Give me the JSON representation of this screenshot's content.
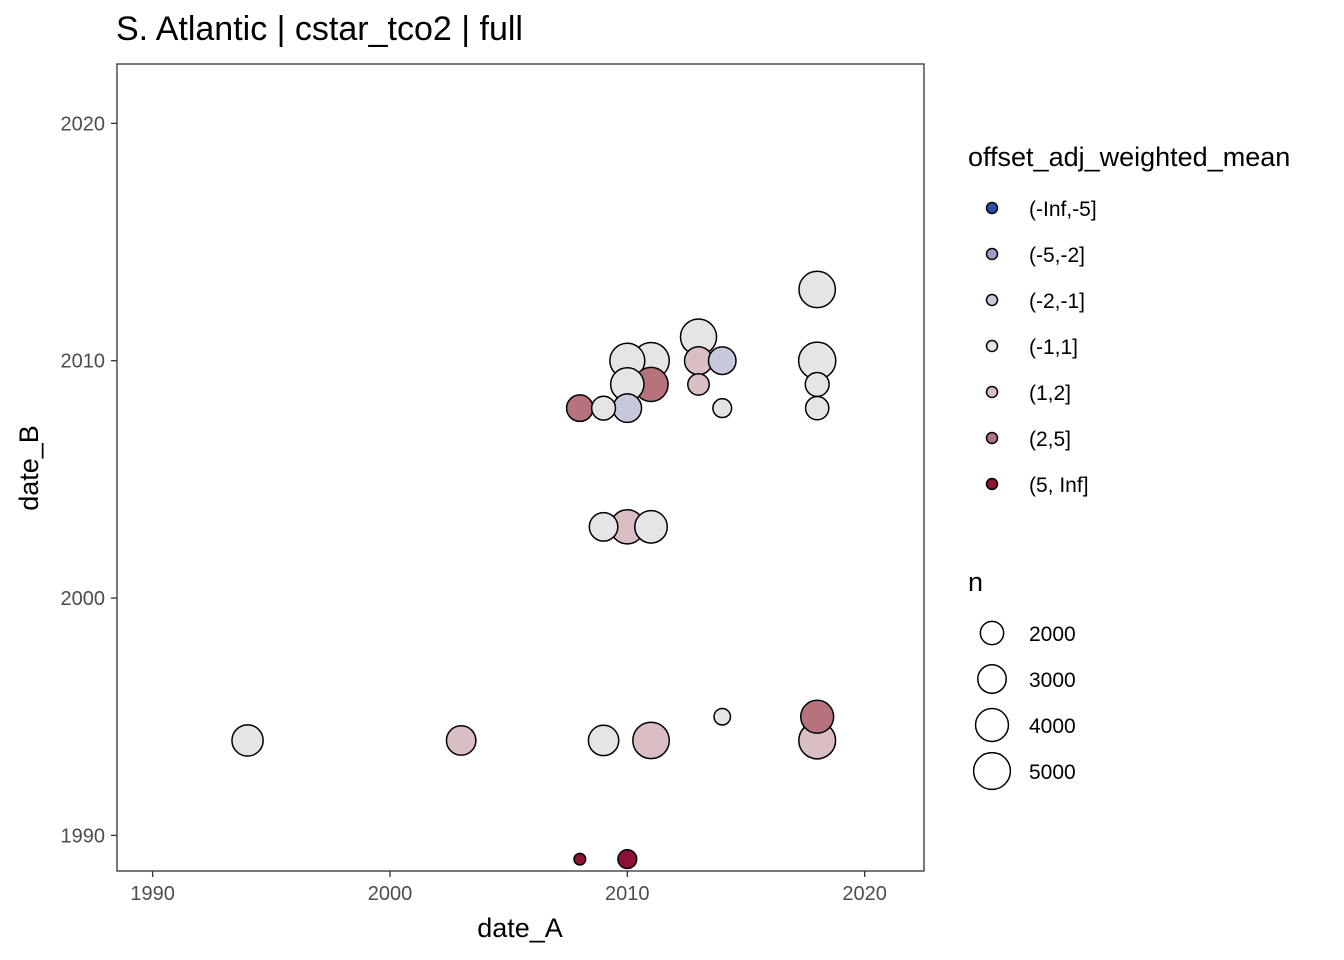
{
  "chart_data": {
    "type": "scatter",
    "title": "S. Atlantic | cstar_tco2 | full",
    "xlabel": "date_A",
    "ylabel": "date_B",
    "xlim": [
      1988.5,
      2022.5
    ],
    "ylim": [
      1988.5,
      2022.5
    ],
    "x_ticks": [
      1990,
      2000,
      2010,
      2020
    ],
    "y_ticks": [
      1990,
      2000,
      2010,
      2020
    ],
    "x_tick_labels": [
      "1990",
      "2000",
      "2010",
      "2020"
    ],
    "y_tick_labels": [
      "1990",
      "2000",
      "2010",
      "2020"
    ],
    "grid": false,
    "legend_placement": "right",
    "color_legend": {
      "title": "offset_adj_weighted_mean",
      "items": [
        {
          "label": "(-Inf,-5]",
          "color": "#2a4fa3"
        },
        {
          "label": "(-5,-2]",
          "color": "#9a9fc7"
        },
        {
          "label": "(-2,-1]",
          "color": "#c6c9dc"
        },
        {
          "label": "(-1,1]",
          "color": "#e5e5e5"
        },
        {
          "label": "(1,2]",
          "color": "#d9bec4"
        },
        {
          "label": "(2,5]",
          "color": "#b6737e"
        },
        {
          "label": "(5, Inf]",
          "color": "#8e1234"
        }
      ]
    },
    "size_legend": {
      "title": "n",
      "items": [
        {
          "label": "2000",
          "value": 2000
        },
        {
          "label": "3000",
          "value": 3000
        },
        {
          "label": "4000",
          "value": 4000
        },
        {
          "label": "5000",
          "value": 5000
        }
      ]
    },
    "points": [
      {
        "x": 1994,
        "y": 1994,
        "n": 3600,
        "bin": "(-1,1]"
      },
      {
        "x": 2003,
        "y": 1994,
        "n": 3200,
        "bin": "(1,2]"
      },
      {
        "x": 2008,
        "y": 1989,
        "n": 500,
        "bin": "(5, Inf]"
      },
      {
        "x": 2008,
        "y": 2008,
        "n": 2600,
        "bin": "(2,5]"
      },
      {
        "x": 2009,
        "y": 2008,
        "n": 2100,
        "bin": "(-1,1]"
      },
      {
        "x": 2009,
        "y": 2003,
        "n": 3000,
        "bin": "(-1,1]"
      },
      {
        "x": 2009,
        "y": 1994,
        "n": 3400,
        "bin": "(-1,1]"
      },
      {
        "x": 2010,
        "y": 1989,
        "n": 1300,
        "bin": "(5, Inf]"
      },
      {
        "x": 2010,
        "y": 2008,
        "n": 3000,
        "bin": "(-2,-1]"
      },
      {
        "x": 2010,
        "y": 2009,
        "n": 4100,
        "bin": "(-1,1]"
      },
      {
        "x": 2010,
        "y": 2010,
        "n": 4500,
        "bin": "(-1,1]"
      },
      {
        "x": 2010,
        "y": 2003,
        "n": 4300,
        "bin": "(1,2]"
      },
      {
        "x": 2011,
        "y": 2009,
        "n": 4300,
        "bin": "(2,5]"
      },
      {
        "x": 2011,
        "y": 2010,
        "n": 4900,
        "bin": "(-1,1]"
      },
      {
        "x": 2011,
        "y": 2003,
        "n": 3900,
        "bin": "(-1,1]"
      },
      {
        "x": 2011,
        "y": 1994,
        "n": 4900,
        "bin": "(1,2]"
      },
      {
        "x": 2013,
        "y": 2011,
        "n": 4800,
        "bin": "(-1,1]"
      },
      {
        "x": 2013,
        "y": 2010,
        "n": 2900,
        "bin": "(1,2]"
      },
      {
        "x": 2013,
        "y": 2009,
        "n": 1700,
        "bin": "(1,2]"
      },
      {
        "x": 2014,
        "y": 2010,
        "n": 2800,
        "bin": "(-2,-1]"
      },
      {
        "x": 2014,
        "y": 2008,
        "n": 1300,
        "bin": "(-1,1]"
      },
      {
        "x": 2014,
        "y": 1995,
        "n": 1000,
        "bin": "(-1,1]"
      },
      {
        "x": 2018,
        "y": 2013,
        "n": 4900,
        "bin": "(-1,1]"
      },
      {
        "x": 2018,
        "y": 2010,
        "n": 5100,
        "bin": "(-1,1]"
      },
      {
        "x": 2018,
        "y": 2009,
        "n": 2100,
        "bin": "(-1,1]"
      },
      {
        "x": 2018,
        "y": 2008,
        "n": 2000,
        "bin": "(-1,1]"
      },
      {
        "x": 2018,
        "y": 1995,
        "n": 4000,
        "bin": "(2,5]"
      },
      {
        "x": 2018,
        "y": 1994,
        "n": 5000,
        "bin": "(1,2]"
      }
    ]
  }
}
